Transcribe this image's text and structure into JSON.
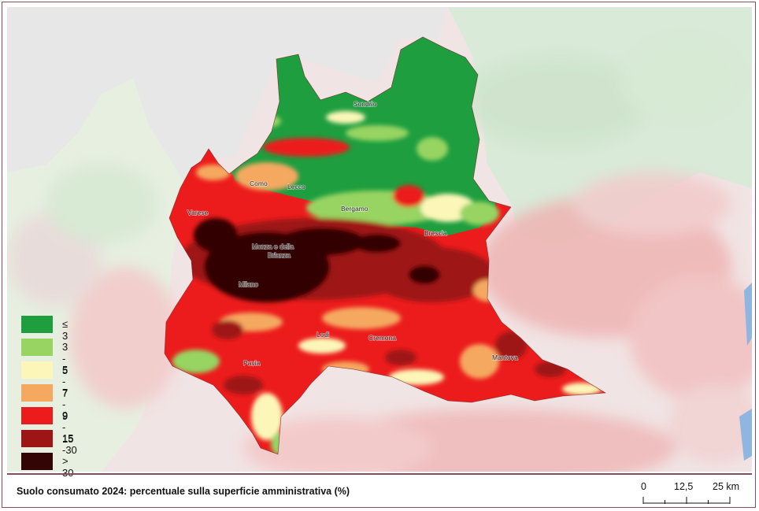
{
  "map": {
    "cities": [
      {
        "id": "sondrio",
        "name": "Sondrio"
      },
      {
        "id": "como",
        "name": "Como"
      },
      {
        "id": "lecco",
        "name": "Lecco"
      },
      {
        "id": "bergamo",
        "name": "Bergamo"
      },
      {
        "id": "varese",
        "name": "Varese"
      },
      {
        "id": "monza1",
        "name": "Monza e della"
      },
      {
        "id": "monza2",
        "name": "Brianza"
      },
      {
        "id": "brescia",
        "name": "Brescia"
      },
      {
        "id": "milano",
        "name": "Milano"
      },
      {
        "id": "lodi",
        "name": "Lodi"
      },
      {
        "id": "cremona",
        "name": "Cremona"
      },
      {
        "id": "pavia",
        "name": "Pavia"
      },
      {
        "id": "mantova",
        "name": "Mantova"
      }
    ]
  },
  "legend": {
    "items": [
      {
        "label": "≤ 3",
        "color": "#1e9e3f"
      },
      {
        "label": "3 - 5",
        "color": "#97d462"
      },
      {
        "label": "5 - 7",
        "color": "#fcf7b8"
      },
      {
        "label": "7 - 9",
        "color": "#f5a860"
      },
      {
        "label": "9 - 15",
        "color": "#ec1c1c"
      },
      {
        "label": "15 -30",
        "color": "#9e1515"
      },
      {
        "label": "> 30",
        "color": "#330505"
      }
    ]
  },
  "caption": "Suolo consumato 2024: percentuale sulla superficie amministrativa (%)",
  "scale_bar": {
    "labels": [
      "0",
      "12,5",
      "25 km"
    ]
  }
}
